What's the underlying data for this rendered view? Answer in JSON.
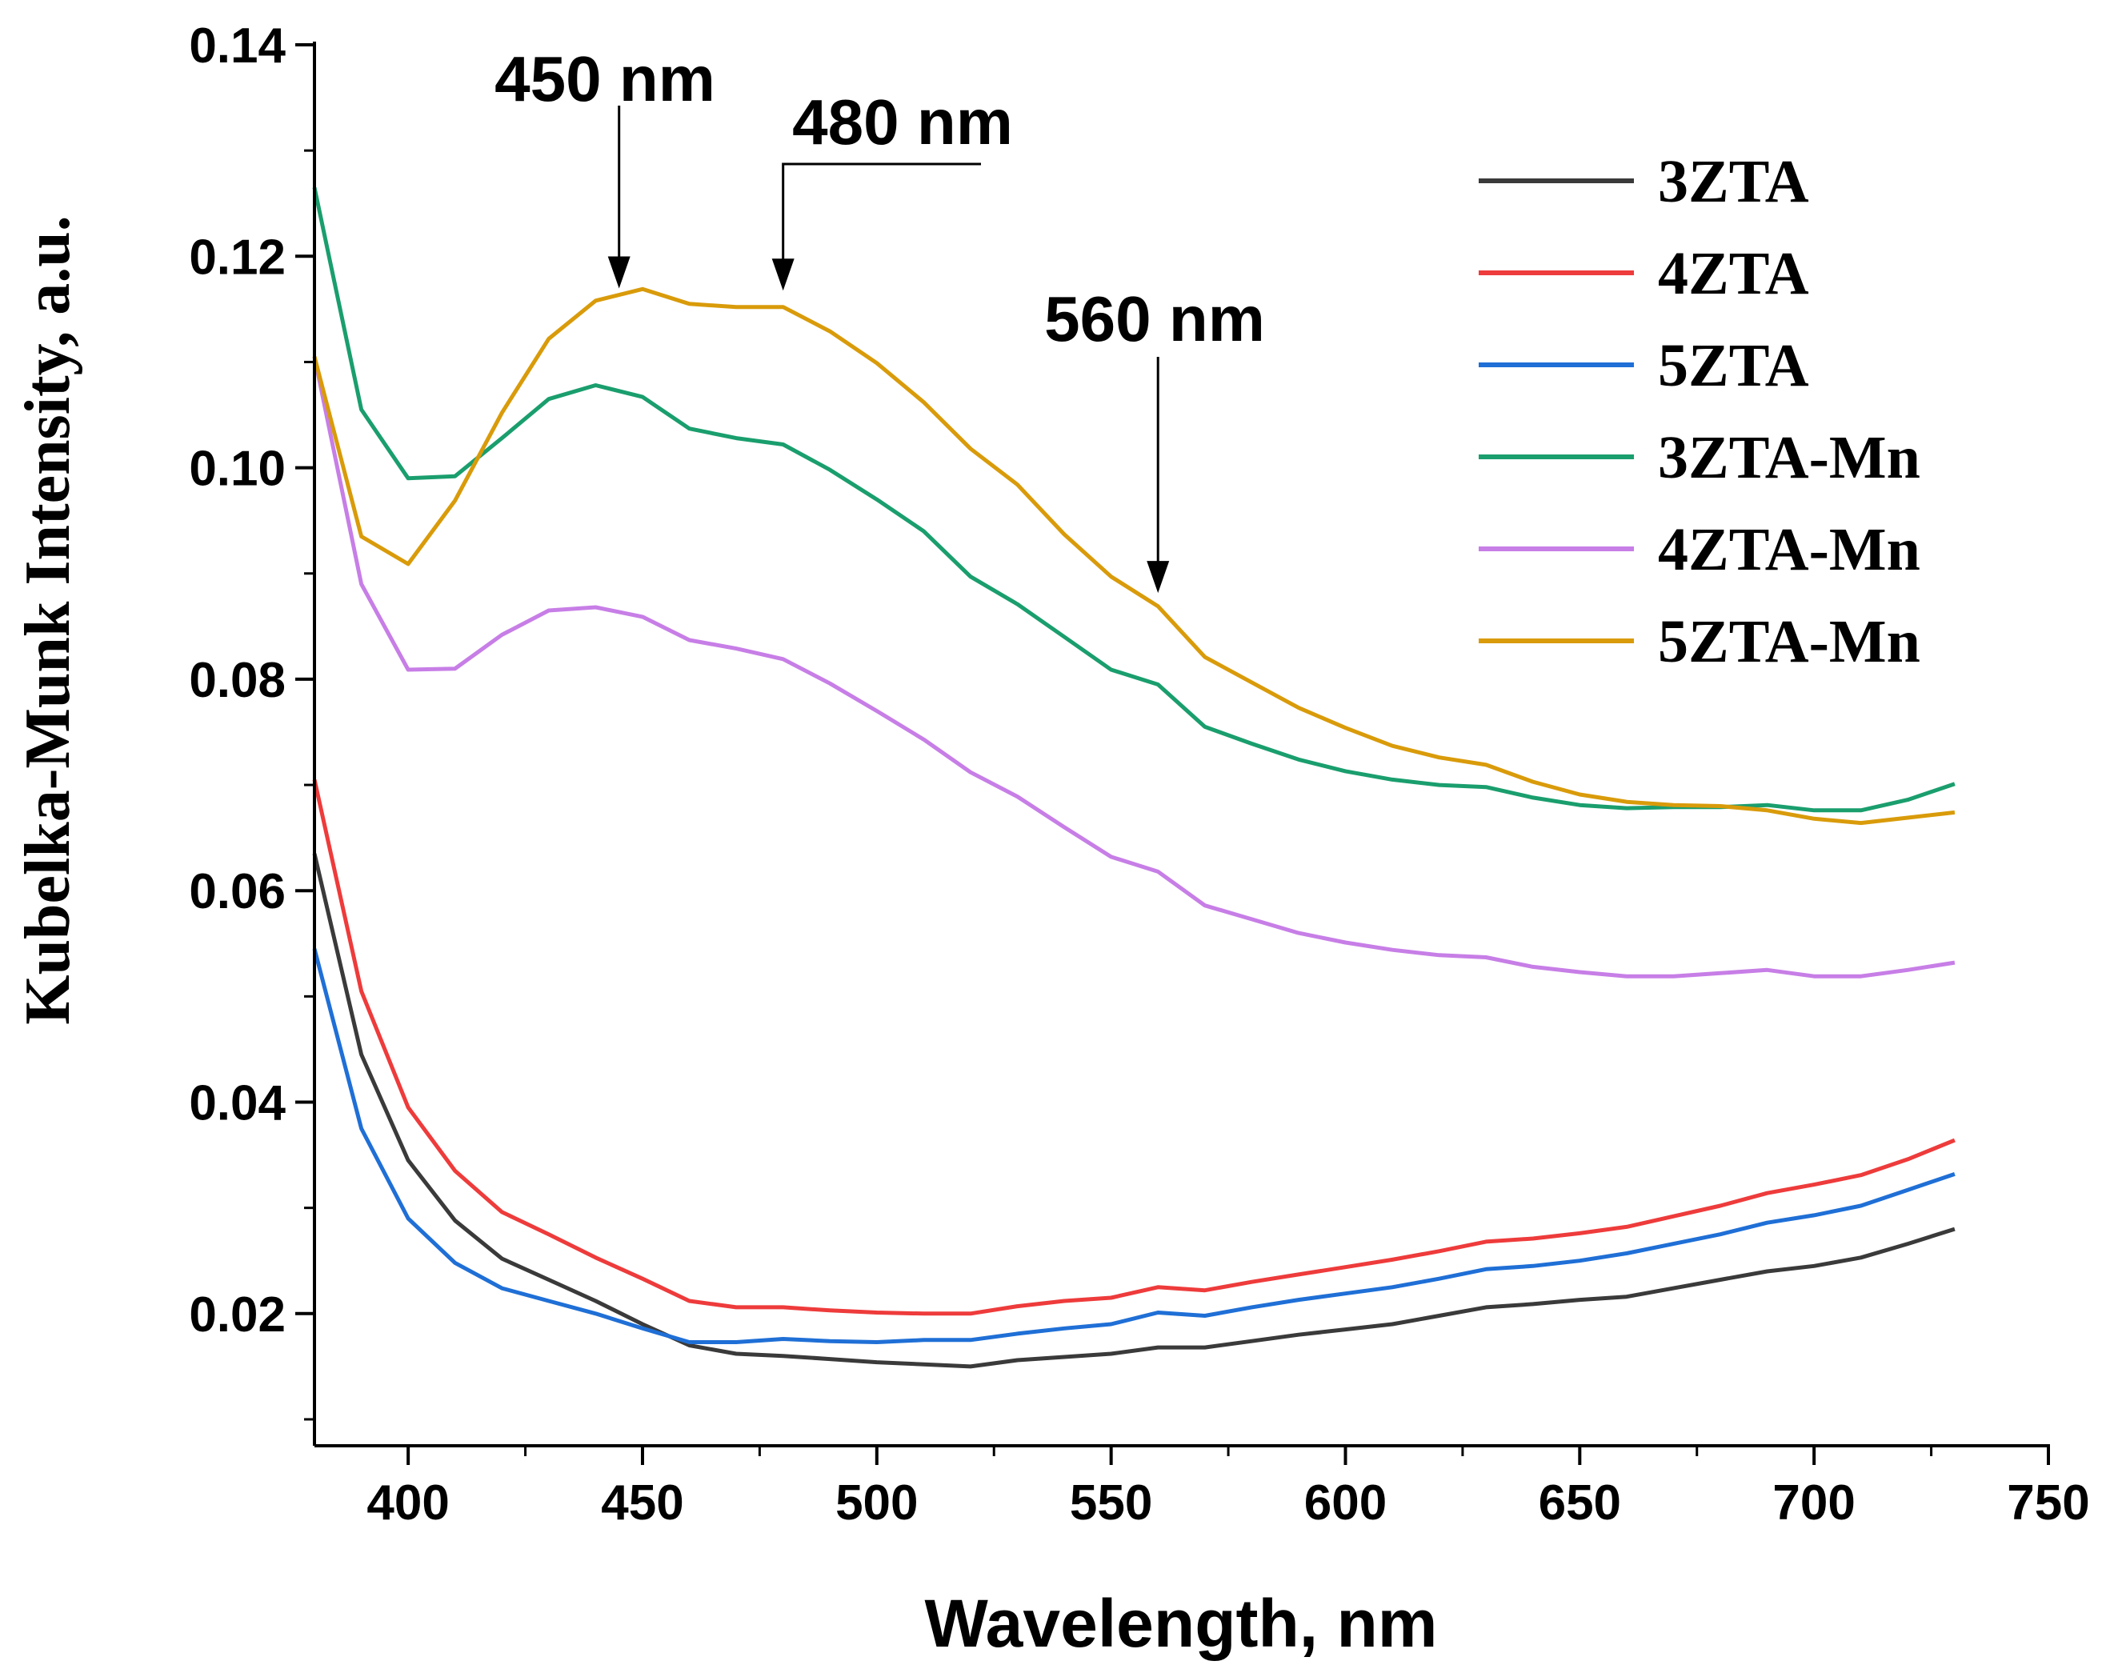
{
  "chart_data": {
    "type": "line",
    "title": "",
    "xlabel": "Wavelength, nm",
    "ylabel": "Kubelka-Munk Intensity, a.u.",
    "xlim": [
      380,
      750
    ],
    "ylim": [
      0.0075,
      0.14
    ],
    "xticks": [
      "400",
      "450",
      "500",
      "550",
      "600",
      "650",
      "700",
      "750"
    ],
    "yticks": [
      "0.02",
      "0.04",
      "0.06",
      "0.08",
      "0.10",
      "0.12",
      "0.14"
    ],
    "x": [
      380,
      390,
      400,
      410,
      420,
      430,
      440,
      450,
      460,
      470,
      480,
      490,
      500,
      510,
      520,
      530,
      540,
      550,
      560,
      570,
      580,
      590,
      600,
      610,
      620,
      630,
      640,
      650,
      660,
      670,
      680,
      690,
      700,
      710,
      720,
      730
    ],
    "series": [
      {
        "name": "3ZTA",
        "color": "#3a3a3a",
        "values": [
          0.0635,
          0.0445,
          0.0345,
          0.0288,
          0.0252,
          0.0232,
          0.0212,
          0.019,
          0.017,
          0.0162,
          0.016,
          0.0157,
          0.0154,
          0.0152,
          0.015,
          0.0156,
          0.0159,
          0.0162,
          0.0168,
          0.0168,
          0.0174,
          0.018,
          0.0185,
          0.019,
          0.0198,
          0.0206,
          0.0209,
          0.0213,
          0.0216,
          0.0224,
          0.0232,
          0.024,
          0.0245,
          0.0253,
          0.0266,
          0.028
        ]
      },
      {
        "name": "4ZTA",
        "color": "#ee3b3b",
        "values": [
          0.0705,
          0.0505,
          0.0395,
          0.0335,
          0.0296,
          0.0275,
          0.0253,
          0.0233,
          0.0212,
          0.0206,
          0.0206,
          0.0203,
          0.0201,
          0.02,
          0.02,
          0.0207,
          0.0212,
          0.0215,
          0.0225,
          0.0222,
          0.023,
          0.0237,
          0.0244,
          0.0251,
          0.0259,
          0.0268,
          0.0271,
          0.0276,
          0.0282,
          0.0292,
          0.0302,
          0.0314,
          0.0322,
          0.0331,
          0.0346,
          0.0364
        ]
      },
      {
        "name": "5ZTA",
        "color": "#1f6fd6",
        "values": [
          0.0545,
          0.0375,
          0.029,
          0.0248,
          0.0224,
          0.0212,
          0.02,
          0.0186,
          0.0173,
          0.0173,
          0.0176,
          0.0174,
          0.0173,
          0.0175,
          0.0175,
          0.0181,
          0.0186,
          0.019,
          0.0201,
          0.0198,
          0.0206,
          0.0213,
          0.0219,
          0.0225,
          0.0233,
          0.0242,
          0.0245,
          0.025,
          0.0257,
          0.0266,
          0.0275,
          0.0286,
          0.0293,
          0.0302,
          0.0317,
          0.0332
        ]
      },
      {
        "name": "3ZTA-Mn",
        "color": "#1a9e6e",
        "values": [
          0.1265,
          0.1055,
          0.099,
          0.0992,
          0.1028,
          0.1065,
          0.1078,
          0.1067,
          0.1037,
          0.1028,
          0.1022,
          0.0998,
          0.097,
          0.094,
          0.0897,
          0.0871,
          0.084,
          0.0809,
          0.0795,
          0.0755,
          0.0739,
          0.0724,
          0.0713,
          0.0705,
          0.07,
          0.0698,
          0.0688,
          0.0681,
          0.0678,
          0.0679,
          0.0679,
          0.0681,
          0.0676,
          0.0676,
          0.0686,
          0.0701
        ]
      },
      {
        "name": "4ZTA-Mn",
        "color": "#c77ee6",
        "values": [
          0.1105,
          0.089,
          0.0809,
          0.081,
          0.0842,
          0.0865,
          0.0868,
          0.0859,
          0.0837,
          0.0829,
          0.0819,
          0.0796,
          0.077,
          0.0743,
          0.0712,
          0.0689,
          0.066,
          0.0632,
          0.0618,
          0.0586,
          0.0573,
          0.056,
          0.0551,
          0.0544,
          0.0539,
          0.0537,
          0.0528,
          0.0523,
          0.0519,
          0.0519,
          0.0522,
          0.0525,
          0.0519,
          0.0519,
          0.0525,
          0.0532
        ]
      },
      {
        "name": "5ZTA-Mn",
        "color": "#d99b0a",
        "values": [
          0.1105,
          0.0935,
          0.0909,
          0.0969,
          0.1052,
          0.1122,
          0.1158,
          0.1169,
          0.1155,
          0.1152,
          0.1152,
          0.1129,
          0.1099,
          0.1062,
          0.1018,
          0.0984,
          0.0937,
          0.0897,
          0.0869,
          0.0821,
          0.0797,
          0.0773,
          0.0754,
          0.0737,
          0.0726,
          0.0719,
          0.0703,
          0.0691,
          0.0684,
          0.0681,
          0.068,
          0.0676,
          0.0668,
          0.0664,
          0.0669,
          0.0674
        ]
      }
    ],
    "annotations": [
      {
        "text": "450 nm",
        "x": 445,
        "y": 0.1165
      },
      {
        "text": "480 nm",
        "x": 480,
        "y": 0.1163
      },
      {
        "text": "560 nm",
        "x": 560,
        "y": 0.0877
      }
    ],
    "legend": "top-right"
  }
}
